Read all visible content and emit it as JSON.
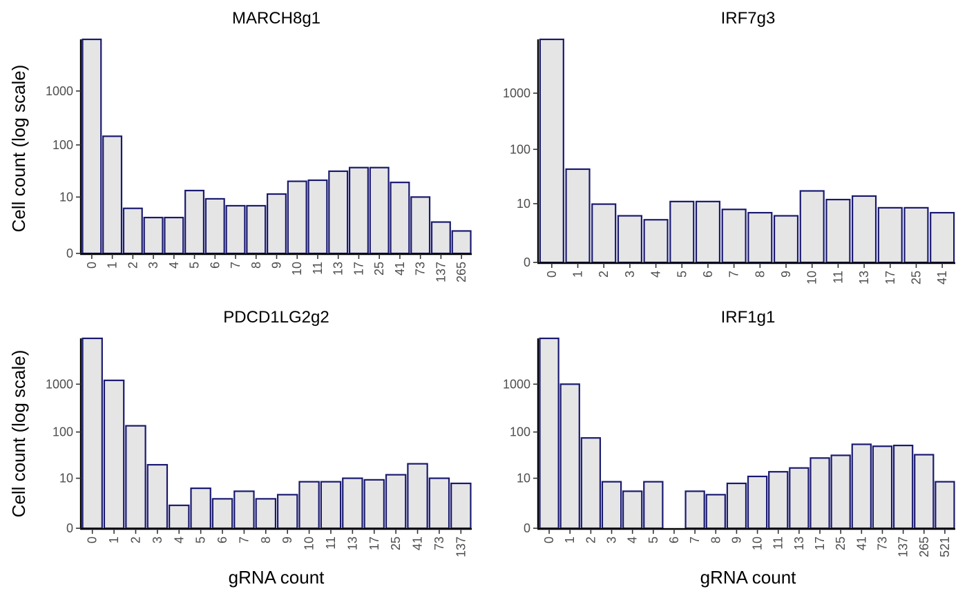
{
  "figure": {
    "ylabel": "Cell count (log scale)",
    "xlabel": "gRNA count"
  },
  "colors": {
    "bar_fill": "#e5e5e5",
    "bar_stroke": "#191970"
  },
  "chart_data": [
    {
      "type": "bar",
      "title": "MARCH8g1",
      "xlabel": "",
      "ylabel": "Cell count (log scale)",
      "y_scale": "log(1+y)",
      "y_ticks": [
        0,
        10,
        100,
        1000
      ],
      "categories": [
        "0",
        "1",
        "2",
        "3",
        "4",
        "5",
        "6",
        "7",
        "8",
        "9",
        "10",
        "11",
        "13",
        "17",
        "25",
        "41",
        "73",
        "137",
        "265"
      ],
      "values": [
        9000,
        145,
        5.8,
        3.6,
        3.6,
        13.5,
        9.2,
        6.6,
        6.6,
        11.5,
        20.5,
        21.5,
        32,
        37.5,
        37.5,
        19.5,
        10,
        2.8,
        1.6
      ]
    },
    {
      "type": "bar",
      "title": "IRF7g3",
      "xlabel": "",
      "ylabel": "",
      "y_scale": "log(1+y)",
      "y_ticks": [
        0,
        10,
        100,
        1000
      ],
      "categories": [
        "0",
        "1",
        "2",
        "3",
        "4",
        "5",
        "6",
        "7",
        "8",
        "9",
        "10",
        "11",
        "13",
        "17",
        "25",
        "41"
      ],
      "values": [
        9000,
        44,
        9.8,
        5.7,
        4.7,
        11,
        11,
        7.7,
        6.6,
        5.7,
        17.5,
        12,
        14,
        8.3,
        8.3,
        6.6
      ]
    },
    {
      "type": "bar",
      "title": "PDCD1LG2g2",
      "xlabel": "gRNA count",
      "ylabel": "Cell count (log scale)",
      "y_scale": "log(1+y)",
      "y_ticks": [
        0,
        10,
        100,
        1000
      ],
      "categories": [
        "0",
        "1",
        "2",
        "3",
        "4",
        "5",
        "6",
        "7",
        "8",
        "9",
        "10",
        "11",
        "13",
        "17",
        "25",
        "41",
        "73",
        "137"
      ],
      "values": [
        9000,
        1200,
        135,
        20,
        2,
        5.8,
        3.1,
        4.9,
        3.1,
        4,
        8.3,
        8.3,
        10,
        9.2,
        12,
        21,
        10,
        7.6
      ]
    },
    {
      "type": "bar",
      "title": "IRF1g1",
      "xlabel": "gRNA count",
      "ylabel": "",
      "y_scale": "log(1+y)",
      "y_ticks": [
        0,
        10,
        100,
        1000
      ],
      "categories": [
        "0",
        "1",
        "2",
        "3",
        "4",
        "5",
        "6",
        "7",
        "8",
        "9",
        "10",
        "11",
        "13",
        "17",
        "25",
        "41",
        "73",
        "137",
        "265",
        "521"
      ],
      "values": [
        9000,
        1000,
        75,
        8.3,
        4.9,
        8.3,
        0,
        4.9,
        4,
        7.6,
        11,
        14,
        17,
        28,
        32,
        55,
        50,
        52,
        33,
        8.3
      ]
    }
  ]
}
